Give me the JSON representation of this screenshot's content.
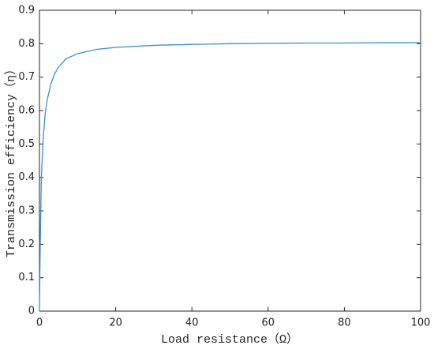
{
  "chart_data": {
    "type": "line",
    "xlabel": "Load resistance（Ω）",
    "ylabel": "Transmission efficiency（η）",
    "x": [
      0,
      0.2,
      0.5,
      1,
      1.5,
      2,
      3,
      4,
      5,
      7,
      10,
      15,
      20,
      30,
      40,
      50,
      60,
      70,
      80,
      90,
      100
    ],
    "series": [
      {
        "color": "#3d8fcc",
        "values": [
          0,
          0.2,
          0.4,
          0.52,
          0.59,
          0.63,
          0.68,
          0.71,
          0.73,
          0.755,
          0.77,
          0.783,
          0.789,
          0.795,
          0.798,
          0.8,
          0.801,
          0.802,
          0.802,
          0.803,
          0.803
        ]
      }
    ],
    "xlim": [
      0,
      100
    ],
    "xticks": [
      0,
      20,
      40,
      60,
      80,
      100
    ],
    "ylim": [
      0,
      0.9
    ],
    "yticks": [
      0,
      0.1,
      0.2,
      0.3,
      0.4,
      0.5,
      0.6,
      0.7,
      0.8,
      0.9
    ]
  }
}
